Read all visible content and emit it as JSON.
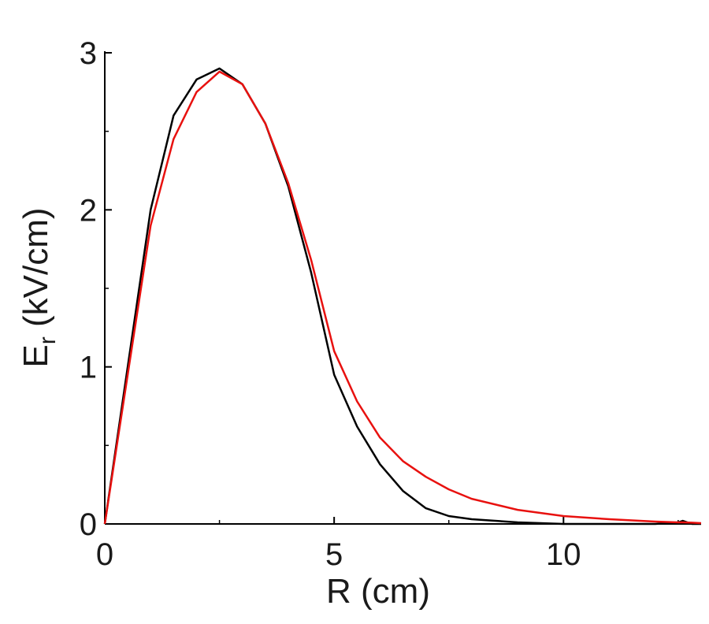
{
  "chart_data": {
    "type": "line",
    "x_label": "R (cm)",
    "y_label": {
      "main": "E",
      "sub": "r",
      "rest": " (kV/cm)"
    },
    "x": [
      0,
      0.5,
      1,
      1.5,
      2,
      2.5,
      3,
      3.5,
      4,
      4.5,
      5,
      5.5,
      6,
      6.5,
      7,
      7.5,
      8,
      9,
      10,
      11,
      12,
      12.5,
      12.6,
      12.8,
      13
    ],
    "series": [
      {
        "color": "#000000",
        "values": [
          0,
          1.0,
          2.0,
          2.6,
          2.83,
          2.9,
          2.8,
          2.55,
          2.15,
          1.6,
          0.95,
          0.62,
          0.38,
          0.21,
          0.1,
          0.05,
          0.03,
          0.01,
          0,
          0,
          0,
          0.01,
          0.02,
          0,
          0
        ]
      },
      {
        "color": "#e8110f",
        "values": [
          0,
          0.95,
          1.9,
          2.45,
          2.75,
          2.88,
          2.8,
          2.55,
          2.17,
          1.68,
          1.1,
          0.78,
          0.55,
          0.4,
          0.3,
          0.22,
          0.16,
          0.09,
          0.05,
          0.03,
          0.015,
          0.01,
          0.01,
          0.008,
          0.005
        ]
      }
    ],
    "xlim": [
      0,
      13
    ],
    "ylim": [
      0,
      3
    ],
    "xticks": [
      0,
      5,
      10
    ],
    "yticks": [
      0,
      1,
      2,
      3
    ],
    "xminorticks": [
      2.5,
      7.5,
      12.5
    ],
    "yminorticks": [
      0.5,
      1.5,
      2.5
    ],
    "grid": false
  }
}
